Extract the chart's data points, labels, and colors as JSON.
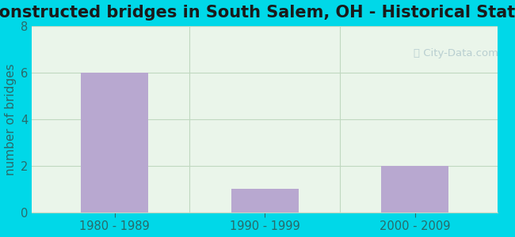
{
  "title": "Reconstructed bridges in South Salem, OH - Historical Statistics",
  "categories": [
    "1980 - 1989",
    "1990 - 1999",
    "2000 - 2009"
  ],
  "values": [
    6,
    1,
    2
  ],
  "bar_color": "#b8a8d0",
  "ylabel": "number of bridges",
  "ylim": [
    0,
    8
  ],
  "yticks": [
    0,
    2,
    4,
    6,
    8
  ],
  "background_outer": "#00d8e8",
  "background_inner_top": "#eaf5ea",
  "background_inner_bottom": "#d0ede8",
  "grid_color": "#c0d8c0",
  "title_fontsize": 15,
  "label_fontsize": 11,
  "tick_fontsize": 10.5,
  "title_color": "#1a1a1a",
  "axis_label_color": "#2a6a6a",
  "tick_color": "#2a6a6a"
}
